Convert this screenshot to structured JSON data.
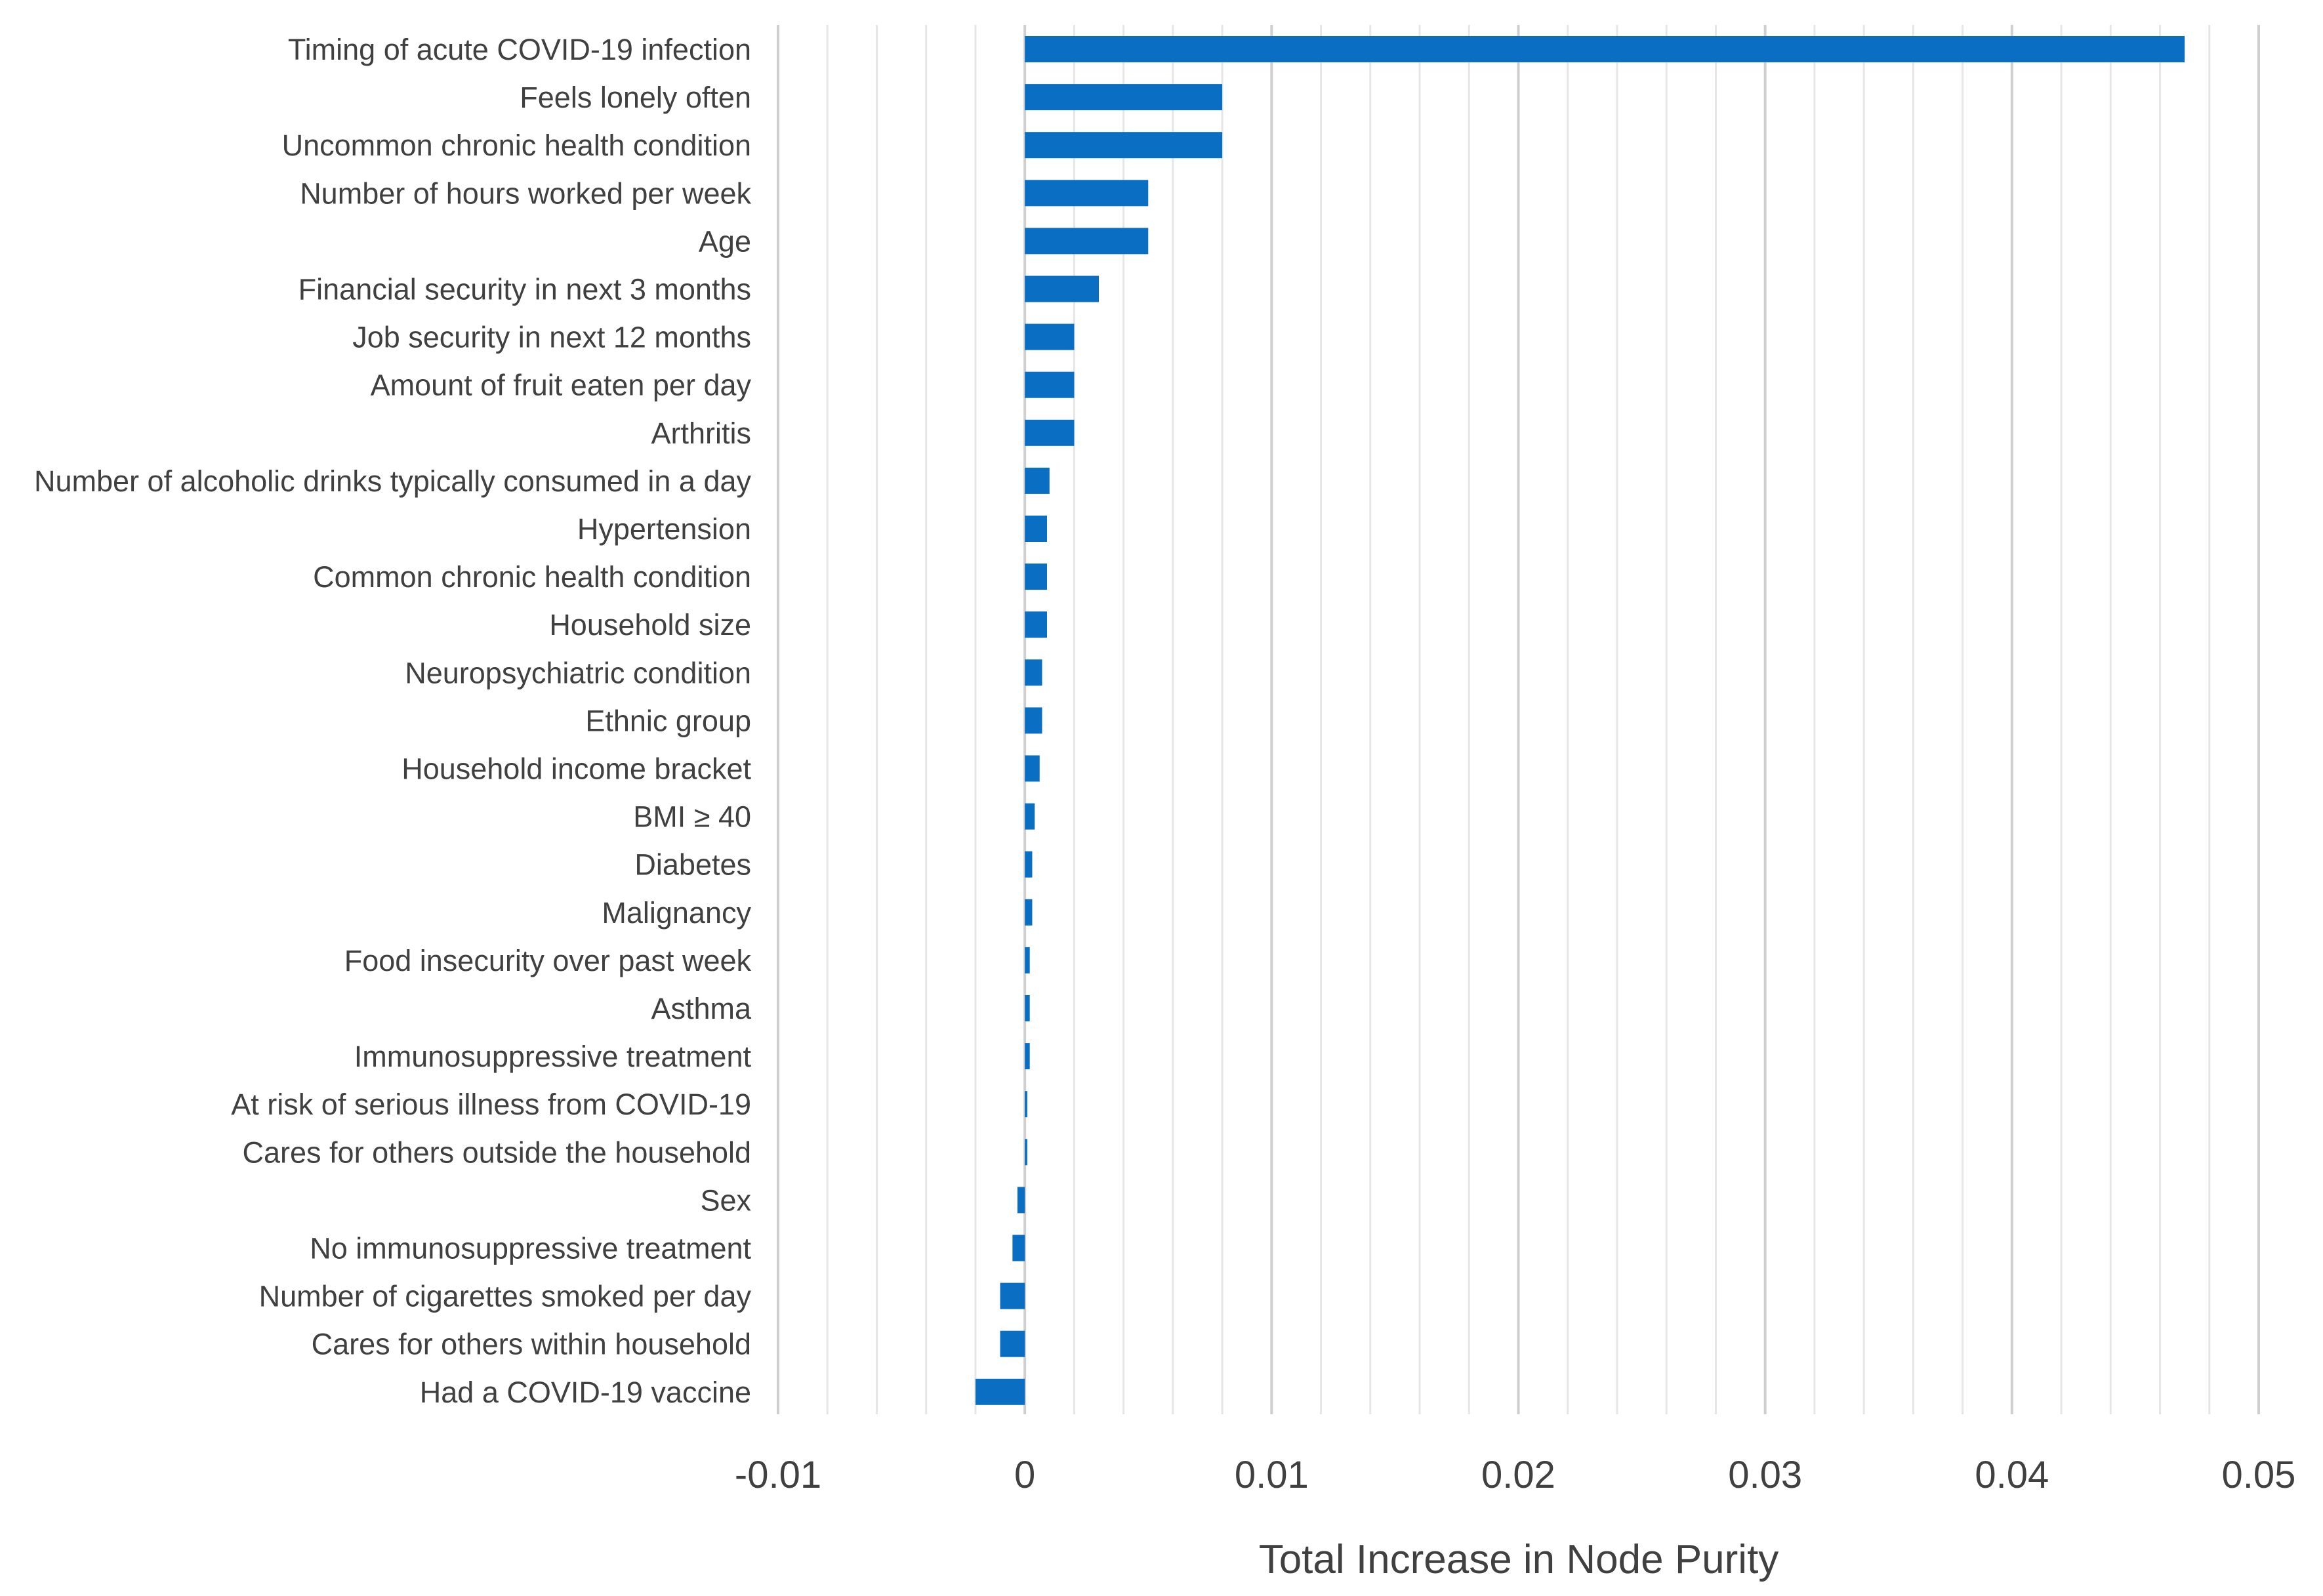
{
  "chart_data": {
    "type": "bar",
    "orientation": "horizontal",
    "title": "",
    "xlabel": "Total Increase in Node Purity",
    "ylabel": "",
    "xlim": [
      -0.01,
      0.05
    ],
    "xticks": [
      -0.01,
      0,
      0.01,
      0.02,
      0.03,
      0.04,
      0.05
    ],
    "xtick_labels": [
      "-0.01",
      "0",
      "0.01",
      "0.02",
      "0.03",
      "0.04",
      "0.05"
    ],
    "minor_gridlines_step": 0.002,
    "grid": true,
    "legend": "none",
    "bar_color": "#0A6FC2",
    "categories": [
      "Timing of acute COVID-19 infection",
      "Feels lonely often",
      "Uncommon chronic health condition",
      "Number of hours worked per week",
      "Age",
      "Financial security in next 3 months",
      "Job security in next 12 months",
      "Amount of fruit eaten per day",
      "Arthritis",
      "Number of alcoholic drinks typically consumed in a day",
      "Hypertension",
      "Common chronic health condition",
      "Household size",
      "Neuropsychiatric condition",
      "Ethnic group",
      "Household income bracket",
      "BMI ≥ 40",
      "Diabetes",
      "Malignancy",
      "Food insecurity over past week",
      "Asthma",
      "Immunosuppressive treatment",
      "At risk of serious illness from COVID-19",
      "Cares for others outside the household",
      "Sex",
      "No immunosuppressive treatment",
      "Number of cigarettes smoked per day",
      "Cares for others within household",
      "Had a COVID-19 vaccine"
    ],
    "values": [
      0.047,
      0.008,
      0.008,
      0.005,
      0.005,
      0.003,
      0.002,
      0.002,
      0.002,
      0.001,
      0.0009,
      0.0009,
      0.0009,
      0.0007,
      0.0007,
      0.0006,
      0.0004,
      0.0003,
      0.0003,
      0.0002,
      0.0002,
      0.0002,
      0.0001,
      0.0001,
      -0.0003,
      -0.0005,
      -0.001,
      -0.001,
      -0.002
    ]
  }
}
